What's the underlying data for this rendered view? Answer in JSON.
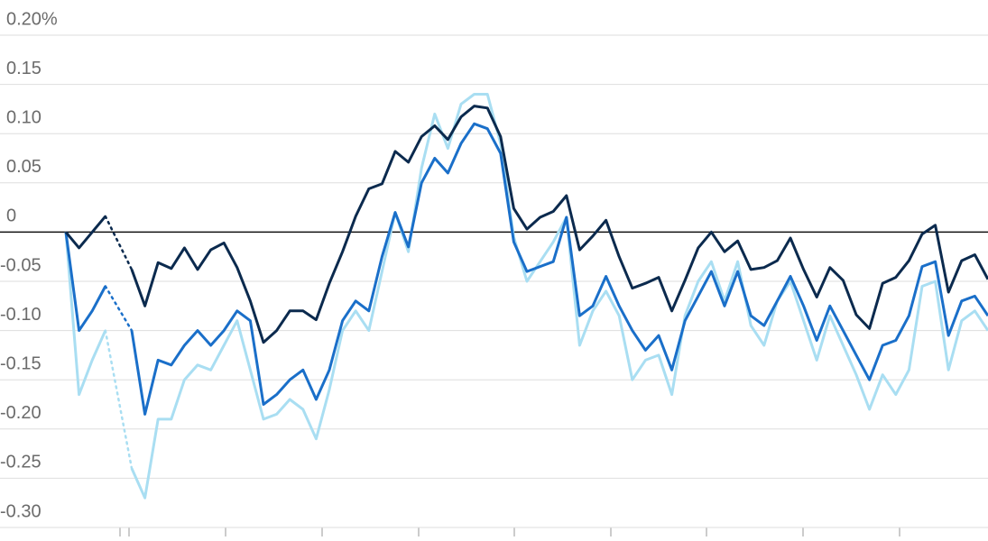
{
  "chart_data": {
    "type": "line",
    "ylim": [
      -0.3,
      0.2
    ],
    "yticks": [
      {
        "value": 0.2,
        "label": "0.20%"
      },
      0.15,
      {
        "value": 0.1,
        "label": "0.10"
      },
      0.05,
      0,
      -0.05,
      {
        "value": -0.1,
        "label": "-0.10"
      },
      -0.15,
      {
        "value": -0.2,
        "label": "-0.20"
      },
      -0.25,
      {
        "value": -0.3,
        "label": "-0.30"
      }
    ],
    "grid": true,
    "series": [
      {
        "color": "#a9def2",
        "values": [
          0,
          -0.165,
          -0.13,
          -0.1,
          null,
          -0.24,
          -0.27,
          -0.19,
          -0.19,
          -0.15,
          -0.135,
          -0.14,
          -0.115,
          -0.09,
          -0.14,
          -0.19,
          -0.185,
          -0.17,
          -0.18,
          -0.21,
          -0.16,
          -0.1,
          -0.08,
          -0.1,
          -0.04,
          0.02,
          -0.02,
          0.065,
          0.12,
          0.085,
          0.13,
          0.14,
          0.14,
          0.09,
          -0.005,
          -0.05,
          -0.03,
          -0.01,
          0.015,
          -0.115,
          -0.08,
          -0.06,
          -0.085,
          -0.15,
          -0.13,
          -0.125,
          -0.165,
          -0.085,
          -0.05,
          -0.03,
          -0.07,
          -0.03,
          -0.095,
          -0.115,
          -0.07,
          -0.05,
          -0.09,
          -0.13,
          -0.085,
          -0.115,
          -0.145,
          -0.18,
          -0.145,
          -0.165,
          -0.14,
          -0.055,
          -0.05,
          -0.14,
          -0.09,
          -0.08,
          -0.1
        ]
      },
      {
        "color": "#1a6fc9",
        "values": [
          0,
          -0.1,
          -0.08,
          -0.055,
          null,
          -0.1,
          -0.185,
          -0.13,
          -0.135,
          -0.115,
          -0.1,
          -0.115,
          -0.1,
          -0.08,
          -0.09,
          -0.175,
          -0.165,
          -0.15,
          -0.14,
          -0.17,
          -0.14,
          -0.09,
          -0.07,
          -0.08,
          -0.025,
          0.02,
          -0.015,
          0.05,
          0.075,
          0.06,
          0.09,
          0.11,
          0.105,
          0.08,
          -0.01,
          -0.04,
          -0.035,
          -0.03,
          0.015,
          -0.085,
          -0.075,
          -0.045,
          -0.075,
          -0.1,
          -0.12,
          -0.105,
          -0.14,
          -0.09,
          -0.065,
          -0.04,
          -0.075,
          -0.04,
          -0.085,
          -0.095,
          -0.07,
          -0.045,
          -0.075,
          -0.11,
          -0.075,
          -0.1,
          -0.125,
          -0.15,
          -0.115,
          -0.11,
          -0.085,
          -0.035,
          -0.03,
          -0.105,
          -0.07,
          -0.065,
          -0.085
        ]
      },
      {
        "color": "#0b2a4e",
        "values": [
          0,
          -0.016,
          0,
          0.016,
          null,
          -0.038,
          -0.075,
          -0.031,
          -0.037,
          -0.016,
          -0.038,
          -0.018,
          -0.011,
          -0.036,
          -0.07,
          -0.112,
          -0.1,
          -0.08,
          -0.08,
          -0.089,
          -0.052,
          -0.02,
          0.016,
          0.044,
          0.049,
          0.082,
          0.071,
          0.097,
          0.108,
          0.094,
          0.117,
          0.128,
          0.126,
          0.097,
          0.024,
          0.003,
          0.015,
          0.021,
          0.037,
          -0.018,
          -0.004,
          0.012,
          -0.025,
          -0.057,
          -0.052,
          -0.046,
          -0.08,
          -0.049,
          -0.016,
          0,
          -0.02,
          -0.009,
          -0.038,
          -0.036,
          -0.029,
          -0.006,
          -0.038,
          -0.066,
          -0.036,
          -0.049,
          -0.084,
          -0.098,
          -0.052,
          -0.046,
          -0.029,
          -0.002,
          0.007,
          -0.061,
          -0.029,
          -0.023,
          -0.048
        ]
      }
    ]
  }
}
